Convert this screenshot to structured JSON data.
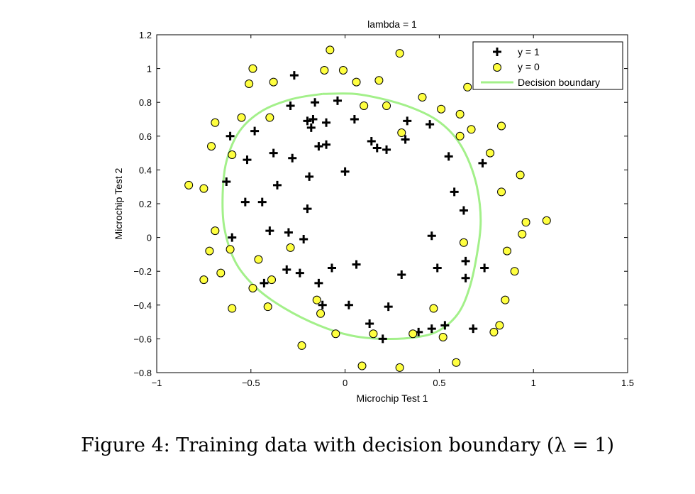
{
  "chart_data": {
    "type": "scatter",
    "title": "lambda = 1",
    "xlabel": "Microchip Test 1",
    "ylabel": "Microchip Test 2",
    "xlim": [
      -1,
      1.5
    ],
    "ylim": [
      -0.8,
      1.2
    ],
    "xticks": [
      -1,
      -0.5,
      0,
      0.5,
      1,
      1.5
    ],
    "xtick_labels": [
      "−1",
      "−0.5",
      "0",
      "0.5",
      "1",
      "1.5"
    ],
    "yticks": [
      -0.8,
      -0.6,
      -0.4,
      -0.2,
      0,
      0.2,
      0.4,
      0.6,
      0.8,
      1,
      1.2
    ],
    "ytick_labels": [
      "−0.8",
      "−0.6",
      "−0.4",
      "−0.2",
      "0",
      "0.2",
      "0.4",
      "0.6",
      "0.8",
      "1",
      "1.2"
    ],
    "grid": false,
    "legend_position": "top-right",
    "series": [
      {
        "name": "y = 1",
        "marker": "plus",
        "color": "#000000",
        "points": [
          [
            -0.27,
            0.96
          ],
          [
            -0.29,
            0.78
          ],
          [
            -0.16,
            0.8
          ],
          [
            -0.04,
            0.81
          ],
          [
            -0.2,
            0.69
          ],
          [
            -0.17,
            0.7
          ],
          [
            -0.18,
            0.65
          ],
          [
            -0.1,
            0.68
          ],
          [
            0.05,
            0.7
          ],
          [
            0.33,
            0.69
          ],
          [
            0.45,
            0.67
          ],
          [
            -0.61,
            0.6
          ],
          [
            -0.48,
            0.63
          ],
          [
            -0.14,
            0.54
          ],
          [
            -0.1,
            0.55
          ],
          [
            0.14,
            0.57
          ],
          [
            0.17,
            0.53
          ],
          [
            0.22,
            0.52
          ],
          [
            0.32,
            0.58
          ],
          [
            0.55,
            0.48
          ],
          [
            0.73,
            0.44
          ],
          [
            -0.38,
            0.5
          ],
          [
            -0.28,
            0.47
          ],
          [
            -0.52,
            0.46
          ],
          [
            -0.19,
            0.36
          ],
          [
            0.0,
            0.39
          ],
          [
            -0.63,
            0.33
          ],
          [
            -0.36,
            0.31
          ],
          [
            0.58,
            0.27
          ],
          [
            -0.53,
            0.21
          ],
          [
            -0.44,
            0.21
          ],
          [
            -0.2,
            0.17
          ],
          [
            0.63,
            0.16
          ],
          [
            -0.6,
            0.0
          ],
          [
            -0.4,
            0.04
          ],
          [
            -0.3,
            0.03
          ],
          [
            -0.22,
            -0.01
          ],
          [
            0.46,
            0.01
          ],
          [
            -0.31,
            -0.19
          ],
          [
            -0.24,
            -0.21
          ],
          [
            -0.07,
            -0.18
          ],
          [
            0.06,
            -0.16
          ],
          [
            0.3,
            -0.22
          ],
          [
            0.49,
            -0.18
          ],
          [
            0.64,
            -0.14
          ],
          [
            0.74,
            -0.18
          ],
          [
            -0.43,
            -0.27
          ],
          [
            -0.14,
            -0.27
          ],
          [
            0.64,
            -0.24
          ],
          [
            -0.12,
            -0.4
          ],
          [
            0.02,
            -0.4
          ],
          [
            0.23,
            -0.41
          ],
          [
            0.13,
            -0.51
          ],
          [
            0.2,
            -0.6
          ],
          [
            0.39,
            -0.56
          ],
          [
            0.46,
            -0.54
          ],
          [
            0.53,
            -0.52
          ],
          [
            0.68,
            -0.54
          ]
        ]
      },
      {
        "name": "y = 0",
        "marker": "circle",
        "color": "#ffff40",
        "points": [
          [
            -0.08,
            1.11
          ],
          [
            0.29,
            1.09
          ],
          [
            -0.49,
            1.0
          ],
          [
            -0.11,
            0.99
          ],
          [
            -0.01,
            0.99
          ],
          [
            -0.51,
            0.91
          ],
          [
            -0.38,
            0.92
          ],
          [
            0.06,
            0.92
          ],
          [
            0.18,
            0.93
          ],
          [
            0.65,
            0.89
          ],
          [
            0.41,
            0.83
          ],
          [
            0.1,
            0.78
          ],
          [
            0.22,
            0.78
          ],
          [
            0.51,
            0.76
          ],
          [
            0.61,
            0.73
          ],
          [
            -0.55,
            0.71
          ],
          [
            -0.4,
            0.71
          ],
          [
            -0.69,
            0.68
          ],
          [
            0.67,
            0.64
          ],
          [
            0.83,
            0.66
          ],
          [
            0.3,
            0.62
          ],
          [
            0.61,
            0.6
          ],
          [
            -0.71,
            0.54
          ],
          [
            -0.6,
            0.49
          ],
          [
            0.77,
            0.5
          ],
          [
            0.93,
            0.37
          ],
          [
            -0.83,
            0.31
          ],
          [
            -0.75,
            0.29
          ],
          [
            0.83,
            0.27
          ],
          [
            1.07,
            0.1
          ],
          [
            0.96,
            0.09
          ],
          [
            0.94,
            0.02
          ],
          [
            -0.69,
            0.04
          ],
          [
            0.63,
            -0.03
          ],
          [
            -0.29,
            -0.06
          ],
          [
            -0.72,
            -0.08
          ],
          [
            -0.61,
            -0.07
          ],
          [
            0.86,
            -0.08
          ],
          [
            -0.46,
            -0.13
          ],
          [
            -0.66,
            -0.21
          ],
          [
            0.9,
            -0.2
          ],
          [
            -0.75,
            -0.25
          ],
          [
            -0.39,
            -0.25
          ],
          [
            -0.49,
            -0.3
          ],
          [
            0.85,
            -0.37
          ],
          [
            -0.15,
            -0.37
          ],
          [
            -0.6,
            -0.42
          ],
          [
            -0.41,
            -0.41
          ],
          [
            0.47,
            -0.42
          ],
          [
            -0.13,
            -0.45
          ],
          [
            0.82,
            -0.52
          ],
          [
            0.79,
            -0.56
          ],
          [
            -0.05,
            -0.57
          ],
          [
            0.15,
            -0.57
          ],
          [
            0.36,
            -0.57
          ],
          [
            0.52,
            -0.59
          ],
          [
            -0.23,
            -0.64
          ],
          [
            0.59,
            -0.74
          ],
          [
            0.09,
            -0.76
          ],
          [
            0.29,
            -0.77
          ]
        ]
      },
      {
        "name": "Decision boundary",
        "type": "line",
        "color": "#a3f08a",
        "points": [
          [
            -0.12,
            0.85
          ],
          [
            0.05,
            0.85
          ],
          [
            0.2,
            0.82
          ],
          [
            0.35,
            0.77
          ],
          [
            0.48,
            0.7
          ],
          [
            0.58,
            0.6
          ],
          [
            0.65,
            0.47
          ],
          [
            0.7,
            0.3
          ],
          [
            0.72,
            0.1
          ],
          [
            0.7,
            -0.1
          ],
          [
            0.66,
            -0.3
          ],
          [
            0.6,
            -0.45
          ],
          [
            0.5,
            -0.55
          ],
          [
            0.38,
            -0.59
          ],
          [
            0.2,
            -0.6
          ],
          [
            0.03,
            -0.58
          ],
          [
            -0.14,
            -0.52
          ],
          [
            -0.32,
            -0.42
          ],
          [
            -0.47,
            -0.3
          ],
          [
            -0.58,
            -0.15
          ],
          [
            -0.64,
            0.05
          ],
          [
            -0.65,
            0.25
          ],
          [
            -0.63,
            0.45
          ],
          [
            -0.56,
            0.63
          ],
          [
            -0.44,
            0.75
          ],
          [
            -0.28,
            0.82
          ],
          [
            -0.12,
            0.85
          ]
        ]
      }
    ]
  },
  "caption": "Figure 4: Training data with decision boundary (λ = 1)"
}
